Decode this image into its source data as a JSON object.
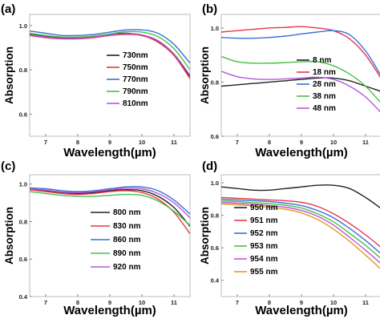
{
  "chart_data": [
    {
      "panel": "(a)",
      "type": "line",
      "xlabel": "Wavelength(µm)",
      "ylabel": "Absorption",
      "xlim": [
        6.5,
        11.5
      ],
      "ylim": [
        0.5,
        1.05
      ],
      "xticks": [
        7,
        8,
        9,
        10,
        11
      ],
      "yticks": [
        0.6,
        0.8,
        1.0
      ],
      "legend_position": "center-right",
      "x": [
        6.5,
        7,
        7.5,
        8,
        8.5,
        9,
        9.5,
        10,
        10.5,
        11,
        11.5
      ],
      "series": [
        {
          "name": "730nm",
          "color": "#222222",
          "values": [
            0.96,
            0.95,
            0.945,
            0.945,
            0.95,
            0.96,
            0.965,
            0.955,
            0.93,
            0.87,
            0.77
          ]
        },
        {
          "name": "750nm",
          "color": "#e8344a",
          "values": [
            0.955,
            0.945,
            0.94,
            0.94,
            0.945,
            0.955,
            0.96,
            0.955,
            0.925,
            0.865,
            0.76
          ]
        },
        {
          "name": "770nm",
          "color": "#3a6fd8",
          "values": [
            0.975,
            0.965,
            0.955,
            0.955,
            0.96,
            0.97,
            0.98,
            0.98,
            0.965,
            0.915,
            0.83
          ]
        },
        {
          "name": "790nm",
          "color": "#44c244",
          "values": [
            0.965,
            0.955,
            0.948,
            0.948,
            0.953,
            0.962,
            0.972,
            0.97,
            0.95,
            0.895,
            0.8
          ]
        },
        {
          "name": "810nm",
          "color": "#b05ad8",
          "values": [
            0.958,
            0.948,
            0.942,
            0.942,
            0.948,
            0.957,
            0.963,
            0.958,
            0.932,
            0.872,
            0.775
          ]
        }
      ]
    },
    {
      "panel": "(b)",
      "type": "line",
      "xlabel": "Wavelength(µm)",
      "ylabel": "Absorption",
      "xlim": [
        6.5,
        11.5
      ],
      "ylim": [
        0.6,
        1.05
      ],
      "xticks": [
        7,
        8,
        9,
        10,
        11
      ],
      "yticks": [
        0.6,
        0.8,
        1.0
      ],
      "legend_position": "center-right",
      "x": [
        6.5,
        7,
        7.5,
        8,
        8.5,
        9,
        9.5,
        10,
        10.5,
        11,
        11.5
      ],
      "series": [
        {
          "name": "8 nm",
          "color": "#222222",
          "values": [
            0.785,
            0.79,
            0.795,
            0.8,
            0.805,
            0.81,
            0.815,
            0.815,
            0.805,
            0.785,
            0.765
          ]
        },
        {
          "name": "18 nm",
          "color": "#e8344a",
          "values": [
            0.985,
            0.99,
            0.995,
            1.0,
            1.002,
            1.005,
            1.0,
            0.99,
            0.96,
            0.9,
            0.81
          ]
        },
        {
          "name": "28 nm",
          "color": "#3a6fd8",
          "values": [
            0.965,
            0.962,
            0.962,
            0.965,
            0.97,
            0.978,
            0.985,
            0.99,
            0.975,
            0.915,
            0.82
          ]
        },
        {
          "name": "38 nm",
          "color": "#44c244",
          "values": [
            0.895,
            0.875,
            0.87,
            0.87,
            0.872,
            0.875,
            0.875,
            0.86,
            0.83,
            0.785,
            0.72
          ]
        },
        {
          "name": "48 nm",
          "color": "#b05ad8",
          "values": [
            0.84,
            0.82,
            0.812,
            0.81,
            0.812,
            0.815,
            0.818,
            0.81,
            0.785,
            0.745,
            0.685
          ]
        }
      ]
    },
    {
      "panel": "(c)",
      "type": "line",
      "xlabel": "Wavelength(µm)",
      "ylabel": "Absorption",
      "xlim": [
        6.5,
        11.5
      ],
      "ylim": [
        0.4,
        1.05
      ],
      "xticks": [
        7,
        8,
        9,
        10,
        11
      ],
      "yticks": [
        0.4,
        0.6,
        0.8,
        1.0
      ],
      "legend_position": "center-right",
      "x": [
        6.5,
        7,
        7.5,
        8,
        8.5,
        9,
        9.5,
        10,
        10.5,
        11,
        11.5
      ],
      "series": [
        {
          "name": "800 nm",
          "color": "#222222",
          "values": [
            0.975,
            0.965,
            0.955,
            0.95,
            0.955,
            0.965,
            0.97,
            0.965,
            0.935,
            0.875,
            0.775
          ]
        },
        {
          "name": "830 nm",
          "color": "#e8344a",
          "values": [
            0.97,
            0.96,
            0.95,
            0.945,
            0.95,
            0.96,
            0.965,
            0.955,
            0.92,
            0.85,
            0.735
          ]
        },
        {
          "name": "860 nm",
          "color": "#3a6fd8",
          "values": [
            0.98,
            0.975,
            0.965,
            0.96,
            0.965,
            0.975,
            0.985,
            0.985,
            0.965,
            0.915,
            0.84
          ]
        },
        {
          "name": "890 nm",
          "color": "#44c244",
          "values": [
            0.96,
            0.95,
            0.94,
            0.935,
            0.935,
            0.94,
            0.945,
            0.94,
            0.91,
            0.855,
            0.78
          ]
        },
        {
          "name": "920 nm",
          "color": "#b05ad8",
          "values": [
            0.975,
            0.968,
            0.958,
            0.955,
            0.96,
            0.97,
            0.978,
            0.975,
            0.95,
            0.9,
            0.82
          ]
        }
      ]
    },
    {
      "panel": "(d)",
      "type": "line",
      "xlabel": "Wavelength(µm)",
      "ylabel": "Absorption",
      "xlim": [
        6.5,
        11.5
      ],
      "ylim": [
        0.3,
        1.05
      ],
      "xticks": [
        7,
        8,
        9,
        10,
        11
      ],
      "yticks": [
        0.4,
        0.6,
        0.8,
        1.0
      ],
      "legend_position": "bottom-left",
      "x": [
        6.5,
        7,
        7.5,
        8,
        8.5,
        9,
        9.5,
        10,
        10.5,
        11,
        11.5
      ],
      "series": [
        {
          "name": "950 nm",
          "color": "#222222",
          "values": [
            0.975,
            0.965,
            0.955,
            0.955,
            0.965,
            0.975,
            0.985,
            0.985,
            0.965,
            0.91,
            0.84
          ]
        },
        {
          "name": "951 nm",
          "color": "#e8344a",
          "values": [
            0.91,
            0.905,
            0.9,
            0.895,
            0.89,
            0.88,
            0.855,
            0.81,
            0.75,
            0.68,
            0.6
          ]
        },
        {
          "name": "952 nm",
          "color": "#3a6fd8",
          "values": [
            0.9,
            0.895,
            0.89,
            0.885,
            0.875,
            0.86,
            0.83,
            0.785,
            0.72,
            0.645,
            0.56
          ]
        },
        {
          "name": "953 nm",
          "color": "#44c244",
          "values": [
            0.89,
            0.885,
            0.878,
            0.872,
            0.862,
            0.845,
            0.81,
            0.76,
            0.69,
            0.615,
            0.53
          ]
        },
        {
          "name": "954 nm",
          "color": "#d04ad8",
          "values": [
            0.88,
            0.875,
            0.868,
            0.86,
            0.85,
            0.83,
            0.795,
            0.74,
            0.665,
            0.585,
            0.5
          ]
        },
        {
          "name": "955 nm",
          "color": "#d8a020",
          "values": [
            0.87,
            0.865,
            0.858,
            0.85,
            0.838,
            0.815,
            0.775,
            0.715,
            0.64,
            0.555,
            0.465
          ]
        }
      ]
    }
  ]
}
